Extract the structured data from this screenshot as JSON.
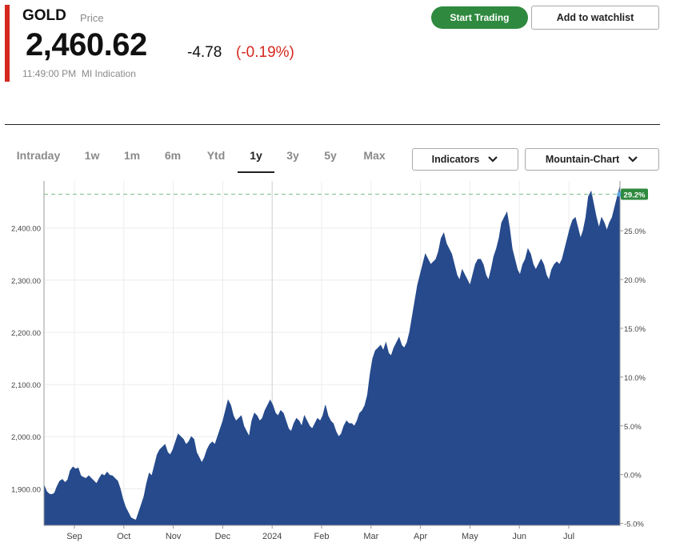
{
  "quote": {
    "symbol": "GOLD",
    "symbol_sub": "Price",
    "price": "2,460.62",
    "change": "-4.78",
    "change_pct": "(-0.19%)",
    "time": "11:49:00 PM",
    "source": "MI Indication",
    "accent_color": "#d4281f"
  },
  "actions": {
    "start_trading": "Start Trading",
    "add_watchlist": "Add to watchlist",
    "trade_color": "#2f8a3f"
  },
  "tabs": [
    {
      "label": "Intraday",
      "active": false
    },
    {
      "label": "1w",
      "active": false
    },
    {
      "label": "1m",
      "active": false
    },
    {
      "label": "6m",
      "active": false
    },
    {
      "label": "Ytd",
      "active": false
    },
    {
      "label": "1y",
      "active": true
    },
    {
      "label": "3y",
      "active": false
    },
    {
      "label": "5y",
      "active": false
    },
    {
      "label": "Max",
      "active": false
    }
  ],
  "dropdowns": {
    "indicators": "Indicators",
    "chart_type": "Mountain-Chart",
    "chevron_icon": "chevron-down-icon"
  },
  "chart_data": {
    "type": "area",
    "fill_color": "#264a8c",
    "title": "",
    "xlabel": "",
    "ylabel": "",
    "ylim": [
      1830,
      2490
    ],
    "y2lim": [
      -5.2,
      30.1
    ],
    "grid": true,
    "x_ticks": [
      "Sep",
      "Oct",
      "Nov",
      "Dec",
      "2024",
      "Feb",
      "Mar",
      "Apr",
      "May",
      "Jun",
      "Jul"
    ],
    "y_ticks": [
      1900,
      2000,
      2100,
      2200,
      2300,
      2400
    ],
    "y_tick_labels": [
      "1,900.00",
      "2,000.00",
      "2,100.00",
      "2,200.00",
      "2,300.00",
      "2,400.00"
    ],
    "y2_ticks": [
      -5,
      0,
      5,
      10,
      15,
      20,
      25
    ],
    "y2_tick_labels": [
      "-5.0%",
      "0.0%",
      "5.0%",
      "10.0%",
      "15.0%",
      "20.0%",
      "25.0%"
    ],
    "current_pct_label": "29.2%",
    "current_badge_color": "#2f8a3f",
    "series": [
      {
        "values": [
          1907,
          1895,
          1890,
          1889,
          1892,
          1905,
          1915,
          1918,
          1912,
          1917,
          1935,
          1942,
          1938,
          1940,
          1925,
          1922,
          1920,
          1925,
          1920,
          1915,
          1910,
          1920,
          1928,
          1925,
          1932,
          1926,
          1925,
          1920,
          1915,
          1900,
          1880,
          1865,
          1855,
          1845,
          1842,
          1840,
          1855,
          1870,
          1885,
          1910,
          1930,
          1925,
          1945,
          1965,
          1975,
          1980,
          1985,
          1970,
          1965,
          1975,
          1990,
          2005,
          2000,
          1995,
          1985,
          1990,
          2000,
          1995,
          1970,
          1960,
          1950,
          1960,
          1975,
          1985,
          1990,
          1985,
          2000,
          2015,
          2030,
          2050,
          2070,
          2060,
          2040,
          2030,
          2035,
          2040,
          2020,
          2010,
          2000,
          2030,
          2045,
          2040,
          2030,
          2035,
          2050,
          2060,
          2070,
          2060,
          2045,
          2040,
          2050,
          2045,
          2030,
          2015,
          2010,
          2025,
          2035,
          2030,
          2020,
          2040,
          2030,
          2020,
          2015,
          2025,
          2035,
          2030,
          2040,
          2060,
          2040,
          2030,
          2025,
          2010,
          2000,
          2005,
          2020,
          2030,
          2025,
          2025,
          2020,
          2030,
          2045,
          2050,
          2060,
          2080,
          2120,
          2150,
          2165,
          2170,
          2175,
          2165,
          2180,
          2160,
          2155,
          2170,
          2180,
          2190,
          2175,
          2170,
          2180,
          2200,
          2230,
          2260,
          2290,
          2310,
          2330,
          2350,
          2340,
          2330,
          2335,
          2340,
          2355,
          2380,
          2390,
          2370,
          2360,
          2350,
          2330,
          2310,
          2300,
          2320,
          2310,
          2300,
          2290,
          2310,
          2330,
          2340,
          2340,
          2330,
          2310,
          2300,
          2320,
          2345,
          2360,
          2380,
          2410,
          2420,
          2430,
          2400,
          2360,
          2340,
          2320,
          2310,
          2330,
          2340,
          2360,
          2350,
          2330,
          2320,
          2330,
          2340,
          2330,
          2310,
          2300,
          2320,
          2330,
          2335,
          2330,
          2340,
          2360,
          2380,
          2400,
          2415,
          2420,
          2400,
          2380,
          2395,
          2420,
          2460,
          2470,
          2445,
          2420,
          2400,
          2420,
          2410,
          2395,
          2410,
          2420,
          2440,
          2460,
          2480
        ]
      }
    ]
  }
}
